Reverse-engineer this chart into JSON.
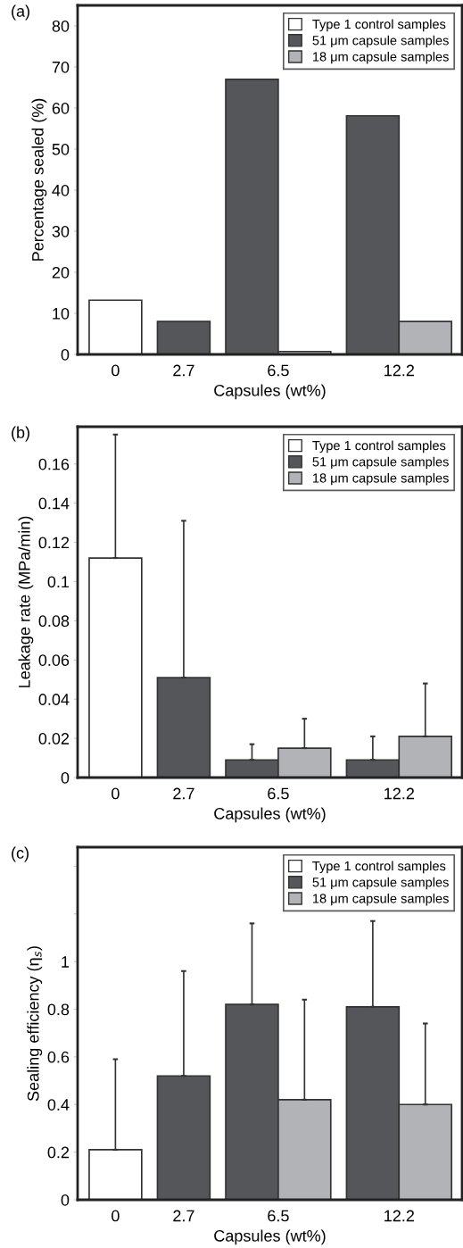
{
  "chart_data": [
    {
      "type": "bar",
      "title": "(a)",
      "xlabel": "Capsules (wt%)",
      "ylabel": "Percentage sealed (%)",
      "categories": [
        "0",
        "2.7",
        "6.5",
        "12.2"
      ],
      "ylim": [
        0,
        85
      ],
      "yticks": [
        0,
        10,
        20,
        30,
        40,
        50,
        60,
        70,
        80
      ],
      "legend": "top right",
      "grid": false,
      "series": [
        {
          "name": "Type 1 control samples",
          "color": "#ffffff",
          "values": [
            13.2,
            null,
            null,
            null
          ]
        },
        {
          "name": "51 μm capsule samples",
          "color": "#55565a",
          "values": [
            null,
            8.0,
            67.0,
            58.1
          ]
        },
        {
          "name": "18 μm capsule samples",
          "color": "#b2b3b6",
          "values": [
            null,
            null,
            0.7,
            8.0
          ]
        }
      ]
    },
    {
      "type": "bar",
      "title": "(b)",
      "xlabel": "Capsules (wt%)",
      "ylabel": "Leakage rate (MPa/min)",
      "categories": [
        "0",
        "2.7",
        "6.5",
        "12.2"
      ],
      "ylim": [
        0,
        0.179
      ],
      "yticks": [
        0,
        0.02,
        0.04,
        0.06,
        0.08,
        {
          "value": 0.1,
          "label": "0.1"
        },
        0.12,
        0.14,
        0.16
      ],
      "legend": "top right",
      "grid": false,
      "series": [
        {
          "name": "Type 1 control samples",
          "color": "#ffffff",
          "values": [
            0.112,
            null,
            null,
            null
          ],
          "errors": [
            [
              0.112,
              0.175
            ],
            null,
            null,
            null
          ]
        },
        {
          "name": "51 μm capsule samples",
          "color": "#55565a",
          "values": [
            null,
            0.051,
            0.009,
            0.009
          ],
          "errors": [
            null,
            [
              0.051,
              0.131
            ],
            [
              0.009,
              0.017
            ],
            [
              0.009,
              0.021
            ]
          ]
        },
        {
          "name": "18 μm capsule samples",
          "color": "#b2b3b6",
          "values": [
            null,
            null,
            0.015,
            0.021
          ],
          "errors": [
            null,
            null,
            [
              0.015,
              0.03
            ],
            [
              0.021,
              0.048
            ]
          ]
        }
      ]
    },
    {
      "type": "bar",
      "title": "(c)",
      "xlabel": "Capsules (wt%)",
      "ylabel": "Sealing efficiency (η$_{s}$)",
      "categories": [
        "0",
        "2.7",
        "6.5",
        "12.2"
      ],
      "ylim": [
        0,
        1.48
      ],
      "yticks": [
        0,
        0.2,
        0.4,
        0.6,
        0.8,
        {
          "value": 1,
          "label": "1"
        },
        {
          "value": 1.2,
          "label": null
        },
        {
          "value": 1.4,
          "label": null
        }
      ],
      "legend": "top right",
      "grid": false,
      "series": [
        {
          "name": "Type 1 control samples",
          "color": "#ffffff",
          "values": [
            0.21,
            null,
            null,
            null
          ],
          "errors": [
            [
              0.21,
              0.59
            ],
            null,
            null,
            null
          ]
        },
        {
          "name": "51 μm capsule samples",
          "color": "#55565a",
          "values": [
            null,
            0.52,
            0.82,
            0.81
          ],
          "errors": [
            null,
            [
              0.52,
              0.96
            ],
            [
              0.82,
              1.16
            ],
            [
              0.81,
              1.17
            ]
          ]
        },
        {
          "name": "18 μm capsule samples",
          "color": "#b2b3b6",
          "values": [
            null,
            null,
            0.42,
            0.4
          ],
          "errors": [
            null,
            null,
            [
              0.42,
              0.84
            ],
            [
              0.4,
              0.74
            ]
          ]
        }
      ]
    }
  ]
}
